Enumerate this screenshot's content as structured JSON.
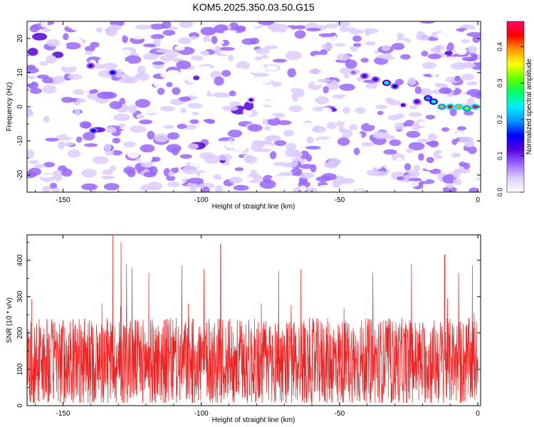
{
  "title": "KOM5.2025.350.03.50.G15",
  "colors": {
    "snr_line": "#ee2222",
    "colormap": [
      "#ffffff",
      "#ddccff",
      "#9966ff",
      "#5500dd",
      "#0000ff",
      "#0099ff",
      "#00eeff",
      "#00ff66",
      "#66ff00",
      "#ffff00",
      "#ff9900",
      "#ff0000",
      "#ff0066"
    ]
  },
  "chart_data": [
    {
      "type": "heatmap",
      "title": "KOM5.2025.350.03.50.G15",
      "xlabel": "Height of straight line (km)",
      "ylabel": "Frequency (Hz)",
      "xlim": [
        -163,
        1
      ],
      "ylim": [
        -25,
        25
      ],
      "x_ticks": [
        -150,
        -100,
        -50,
        0
      ],
      "y_ticks": [
        -20,
        -10,
        0,
        10,
        20
      ],
      "grid": false,
      "colorbar": {
        "label": "Normalized spectral amplitude",
        "range": [
          0.0,
          0.47
        ],
        "ticks": [
          0.0,
          0.1,
          0.2,
          0.3,
          0.4
        ]
      },
      "background_level": [
        0.0,
        0.1
      ],
      "features": [
        {
          "x": -1,
          "y": 0,
          "value": 0.46
        },
        {
          "x": -4,
          "y": -0.5,
          "value": 0.33
        },
        {
          "x": -7,
          "y": 0,
          "value": 0.4
        },
        {
          "x": -10,
          "y": 0,
          "value": 0.42
        },
        {
          "x": -13,
          "y": 0,
          "value": 0.38
        },
        {
          "x": -16,
          "y": 1.5,
          "value": 0.25
        },
        {
          "x": -18,
          "y": 2.5,
          "value": 0.2
        },
        {
          "x": -22,
          "y": 1.5,
          "value": 0.12
        },
        {
          "x": -27,
          "y": 0.5,
          "value": 0.1
        },
        {
          "x": -30,
          "y": 6,
          "value": 0.15
        },
        {
          "x": -33,
          "y": 7,
          "value": 0.22
        },
        {
          "x": -37,
          "y": 8,
          "value": 0.13
        },
        {
          "x": -41,
          "y": 9,
          "value": 0.12
        },
        {
          "x": -45,
          "y": 10,
          "value": 0.09
        },
        {
          "x": -132,
          "y": 10,
          "value": 0.16
        },
        {
          "x": -140,
          "y": 12,
          "value": 0.12
        },
        {
          "x": -139,
          "y": -7,
          "value": 0.14
        },
        {
          "x": -82,
          "y": 2,
          "value": 0.1
        }
      ]
    },
    {
      "type": "line",
      "xlabel": "Height of straight line (km)",
      "ylabel": "SNR (10 * v/v)",
      "xlim": [
        -163,
        1
      ],
      "ylim": [
        0,
        470
      ],
      "x_ticks": [
        -150,
        -100,
        -50,
        0
      ],
      "y_ticks": [
        0,
        100,
        200,
        300,
        400
      ],
      "grid": false,
      "series": [
        {
          "x_range": [
            -163,
            0
          ],
          "n_points": 1800,
          "typical_range": [
            30,
            260
          ],
          "mean": 120,
          "peaks": [
            {
              "x": -132,
              "y": 470
            },
            {
              "x": -129,
              "y": 450
            },
            {
              "x": -127,
              "y": 390
            },
            {
              "x": -125,
              "y": 380
            },
            {
              "x": -119,
              "y": 365
            },
            {
              "x": -107,
              "y": 385
            },
            {
              "x": -99,
              "y": 375
            },
            {
              "x": -93,
              "y": 445
            },
            {
              "x": -72,
              "y": 370
            },
            {
              "x": -64,
              "y": 375
            },
            {
              "x": -38,
              "y": 365
            },
            {
              "x": -24,
              "y": 390
            },
            {
              "x": -12,
              "y": 415
            },
            {
              "x": -7,
              "y": 365
            },
            {
              "x": -2,
              "y": 385
            }
          ]
        }
      ]
    }
  ]
}
